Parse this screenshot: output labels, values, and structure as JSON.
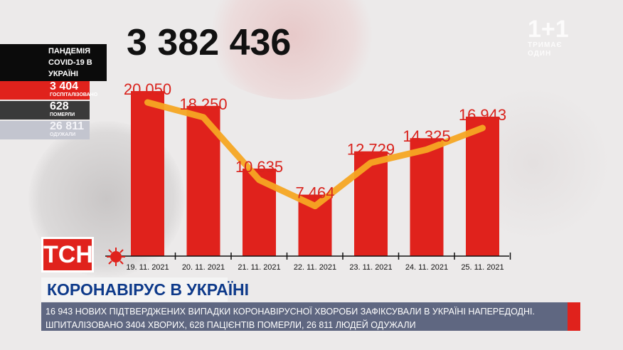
{
  "total_cases": "3 382 436",
  "side_panel": {
    "title": "ПАНДЕМІЯ COVID-19 В УКРАЇНІ",
    "hospitalized_value": "3 404",
    "hospitalized_label": "ГОСПІТАЛІЗОВАНО",
    "died_value": "628",
    "died_label": "ПОМЕРЛИ",
    "recovered_value": "26 811",
    "recovered_label": "ОДУЖАЛИ"
  },
  "channel_logo": {
    "name": "1+1",
    "sub": "ТРИМАЄ ОДИН"
  },
  "news": {
    "badge": "ТСН",
    "headline": "КОРОНАВІРУС В УКРАЇНІ",
    "ticker": "16 943 НОВИХ ПІДТВЕРДЖЕНИХ ВИПАДКИ КОРОНАВІРУСНОЇ ХВОРОБИ ЗАФІКСУВАЛИ В УКРАЇНІ НАПЕРЕДОДНІ. ШПИТАЛІЗОВАНО 3404 ХВОРИХ, 628 ПАЦІЄНТІВ ПОМЕРЛИ, 26 811 ЛЮДЕЙ ОДУЖАЛИ"
  },
  "icons": [
    "virus-icon"
  ],
  "colors": {
    "bar": "#e0221c",
    "line": "#f5a623",
    "label": "#d9231d",
    "axis": "#111111"
  },
  "chart_data": {
    "type": "bar",
    "categories": [
      "19. 11. 2021",
      "20. 11. 2021",
      "21. 11. 2021",
      "22. 11. 2021",
      "23. 11. 2021",
      "24. 11. 2021",
      "25. 11. 2021"
    ],
    "values": [
      20050,
      18250,
      10635,
      7464,
      12729,
      14325,
      16943
    ],
    "value_labels": [
      "20 050",
      "18 250",
      "10 635",
      "7 464",
      "12 729",
      "14 325",
      "16 943"
    ],
    "overlay": "line",
    "ylim": [
      0,
      21000
    ],
    "grid": false,
    "legend": "none"
  }
}
